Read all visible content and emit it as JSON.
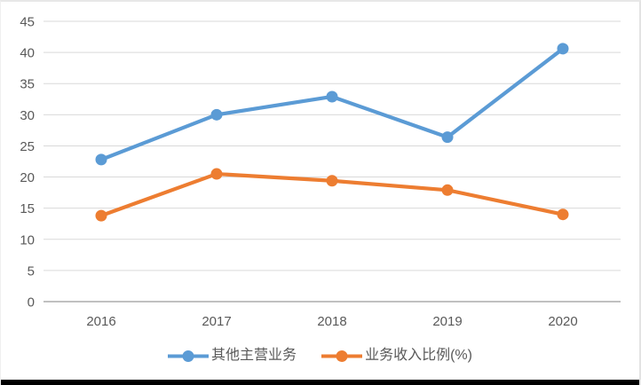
{
  "styles": {
    "background": "#FFFFFF",
    "grid_color": "#D9D9D9",
    "axis_line_color": "#ACACAC",
    "tick_label_color": "#595959",
    "legend_text_color": "#595959",
    "frame_border_color": "#E7E7E7",
    "bottom_bar_color": "#000000"
  },
  "chart_data": {
    "type": "line",
    "title": "",
    "xlabel": "",
    "ylabel": "",
    "categories": [
      "2016",
      "2017",
      "2018",
      "2019",
      "2020"
    ],
    "series": [
      {
        "name": "其他主营业务",
        "color": "#5B9BD5",
        "values": [
          22.8,
          30.0,
          32.9,
          26.4,
          40.6
        ]
      },
      {
        "name": "业务收入比例(%)",
        "color": "#ED7D31",
        "values": [
          13.8,
          20.5,
          19.4,
          17.9,
          14.0
        ]
      }
    ],
    "ylim": [
      0,
      45
    ],
    "y_ticks": [
      0,
      5,
      10,
      15,
      20,
      25,
      30,
      35,
      40,
      45
    ],
    "grid": true,
    "marker": "circle",
    "legend_position": "bottom"
  }
}
